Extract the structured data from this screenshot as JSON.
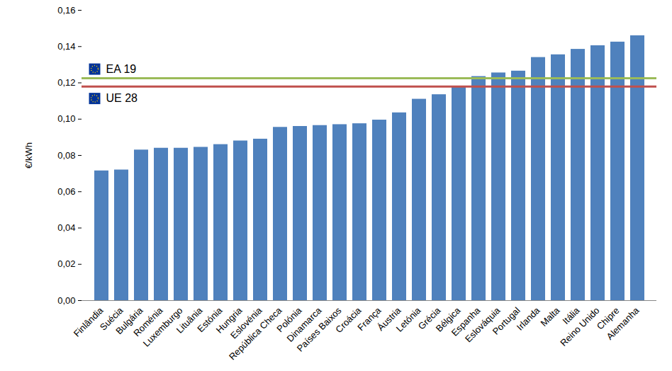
{
  "chart_data": {
    "type": "bar",
    "categories": [
      "Finlândia",
      "Suécia",
      "Bulgária",
      "Roménia",
      "Luxemburgo",
      "Lituânia",
      "Estónia",
      "Hungria",
      "Eslovénia",
      "República Checa",
      "Polónia",
      "Dinamarca",
      "Países Baixos",
      "Croácia",
      "França",
      "Áustria",
      "Letónia",
      "Grécia",
      "Bélgica",
      "Espanha",
      "Eslováquia",
      "Portugal",
      "Irlanda",
      "Malta",
      "Itália",
      "Reino Unido",
      "Chipre",
      "Alemanha"
    ],
    "values": [
      0.0715,
      0.072,
      0.083,
      0.084,
      0.084,
      0.0845,
      0.086,
      0.088,
      0.089,
      0.0955,
      0.096,
      0.0965,
      0.097,
      0.0975,
      0.0995,
      0.1035,
      0.111,
      0.1135,
      0.118,
      0.1235,
      0.1255,
      0.1265,
      0.134,
      0.1355,
      0.1385,
      0.1405,
      0.1425,
      0.146
    ],
    "color": "#4f81bd",
    "y_label": "€/kWh",
    "ylim": [
      0,
      0.16
    ],
    "yticks": [
      {
        "value": 0,
        "label": "0,00"
      },
      {
        "value": 0.02,
        "label": "0,02"
      },
      {
        "value": 0.04,
        "label": "0,04"
      },
      {
        "value": 0.06,
        "label": "0,06"
      },
      {
        "value": 0.08,
        "label": "0,08"
      },
      {
        "value": 0.1,
        "label": "0,10"
      },
      {
        "value": 0.12,
        "label": "0,12"
      },
      {
        "value": 0.14,
        "label": "0,14"
      },
      {
        "value": 0.16,
        "label": "0,16"
      }
    ],
    "grid": false,
    "reference_lines": [
      {
        "name": "EA 19",
        "value": 0.1225,
        "color": "#9bbb59"
      },
      {
        "name": "UE 28",
        "value": 0.118,
        "color": "#c0504d"
      }
    ]
  }
}
